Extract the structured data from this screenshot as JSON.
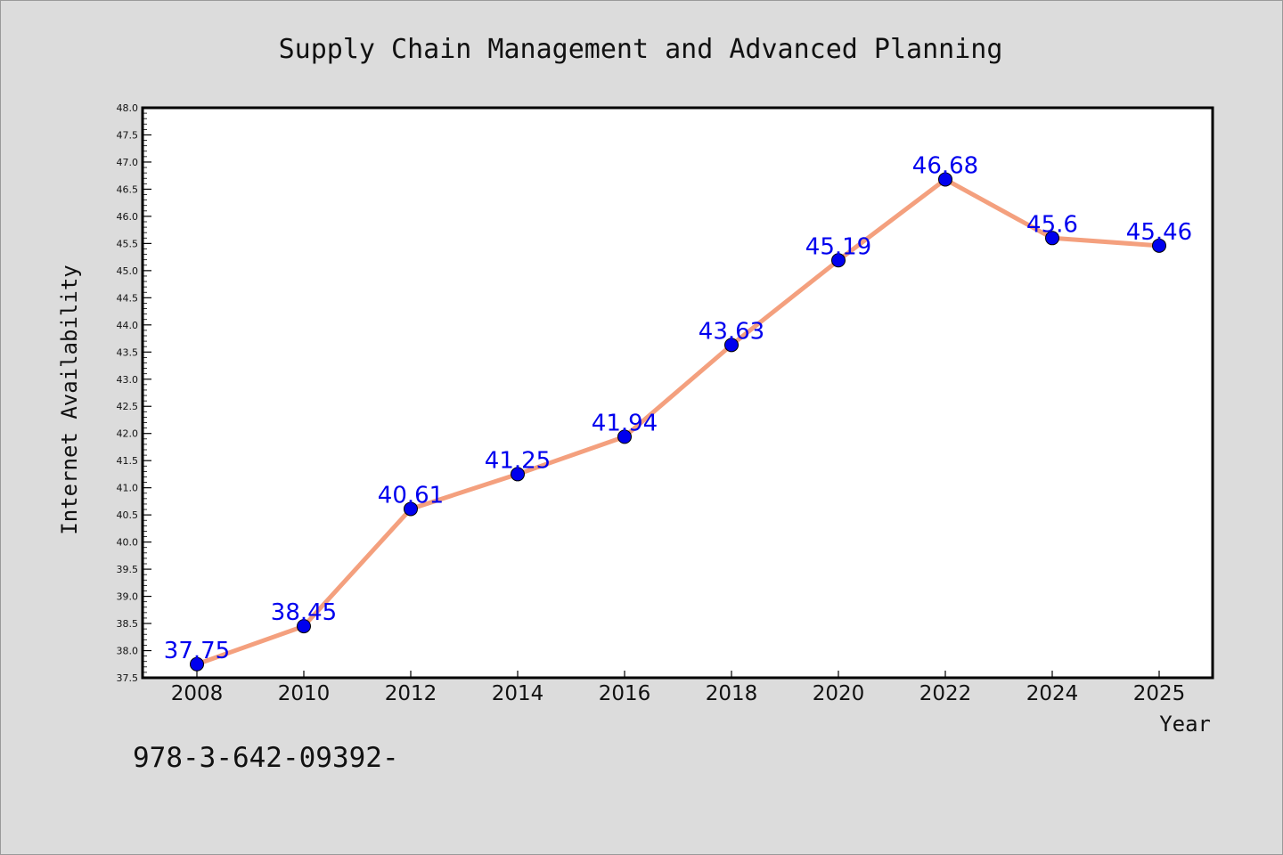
{
  "chart_data": {
    "type": "line",
    "title": "Supply Chain Management and Advanced Planning",
    "xlabel": "Year",
    "ylabel": "Internet Availability",
    "categories": [
      "2008",
      "2010",
      "2012",
      "2014",
      "2016",
      "2018",
      "2020",
      "2022",
      "2024",
      "2025"
    ],
    "series": [
      {
        "values": [
          37.75,
          38.45,
          40.61,
          41.25,
          41.94,
          43.63,
          45.19,
          46.68,
          45.6,
          45.46
        ],
        "labels": [
          "37.75",
          "38.45",
          "40.61",
          "41.25",
          "41.94",
          "43.63",
          "45.19",
          "46.68",
          "45.6",
          "45.46"
        ],
        "line_color": "#f4a07e",
        "marker_color": "#0000ee",
        "label_color": "#0000ee"
      }
    ],
    "ylim": [
      37.5,
      48.0
    ],
    "yticks": [
      "37.5",
      "38.0",
      "38.5",
      "39.0",
      "39.5",
      "40.0",
      "40.5",
      "41.0",
      "41.5",
      "42.0",
      "42.5",
      "43.0",
      "43.5",
      "44.0",
      "44.5",
      "45.0",
      "45.5",
      "46.0",
      "46.5",
      "47.0",
      "47.5",
      "48.0"
    ],
    "grid": false,
    "legend": "none"
  },
  "footer_text": "978-3-642-09392-",
  "colors": {
    "background": "#dcdcdc",
    "plot_background": "#ffffff",
    "frame": "#000000"
  }
}
